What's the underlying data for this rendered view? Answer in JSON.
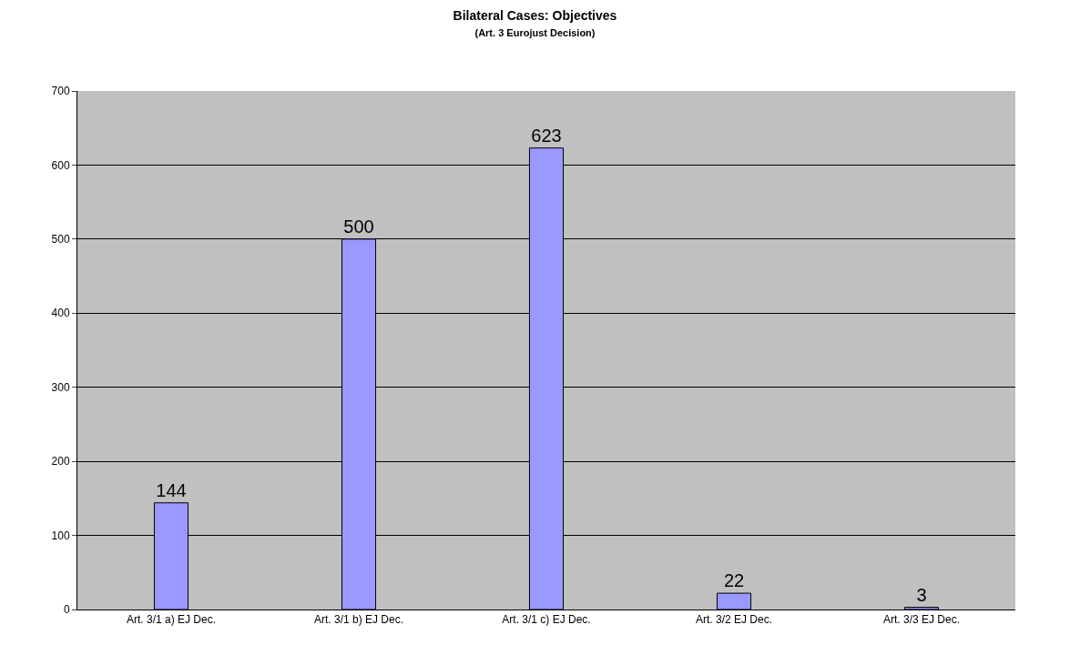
{
  "chart_data": {
    "type": "bar",
    "title": "Bilateral Cases: Objectives",
    "subtitle": "(Art. 3 Eurojust Decision)",
    "categories": [
      "Art. 3/1 a) EJ Dec.",
      "Art. 3/1 b) EJ Dec.",
      "Art. 3/1 c) EJ Dec.",
      "Art. 3/2 EJ Dec.",
      "Art. 3/3 EJ Dec."
    ],
    "values": [
      144,
      500,
      623,
      22,
      3
    ],
    "color": "#9999ff",
    "ylim": [
      0,
      700
    ],
    "yticks": [
      0,
      100,
      200,
      300,
      400,
      500,
      600,
      700
    ],
    "grid": "y",
    "data_labels": true,
    "legend": false
  }
}
